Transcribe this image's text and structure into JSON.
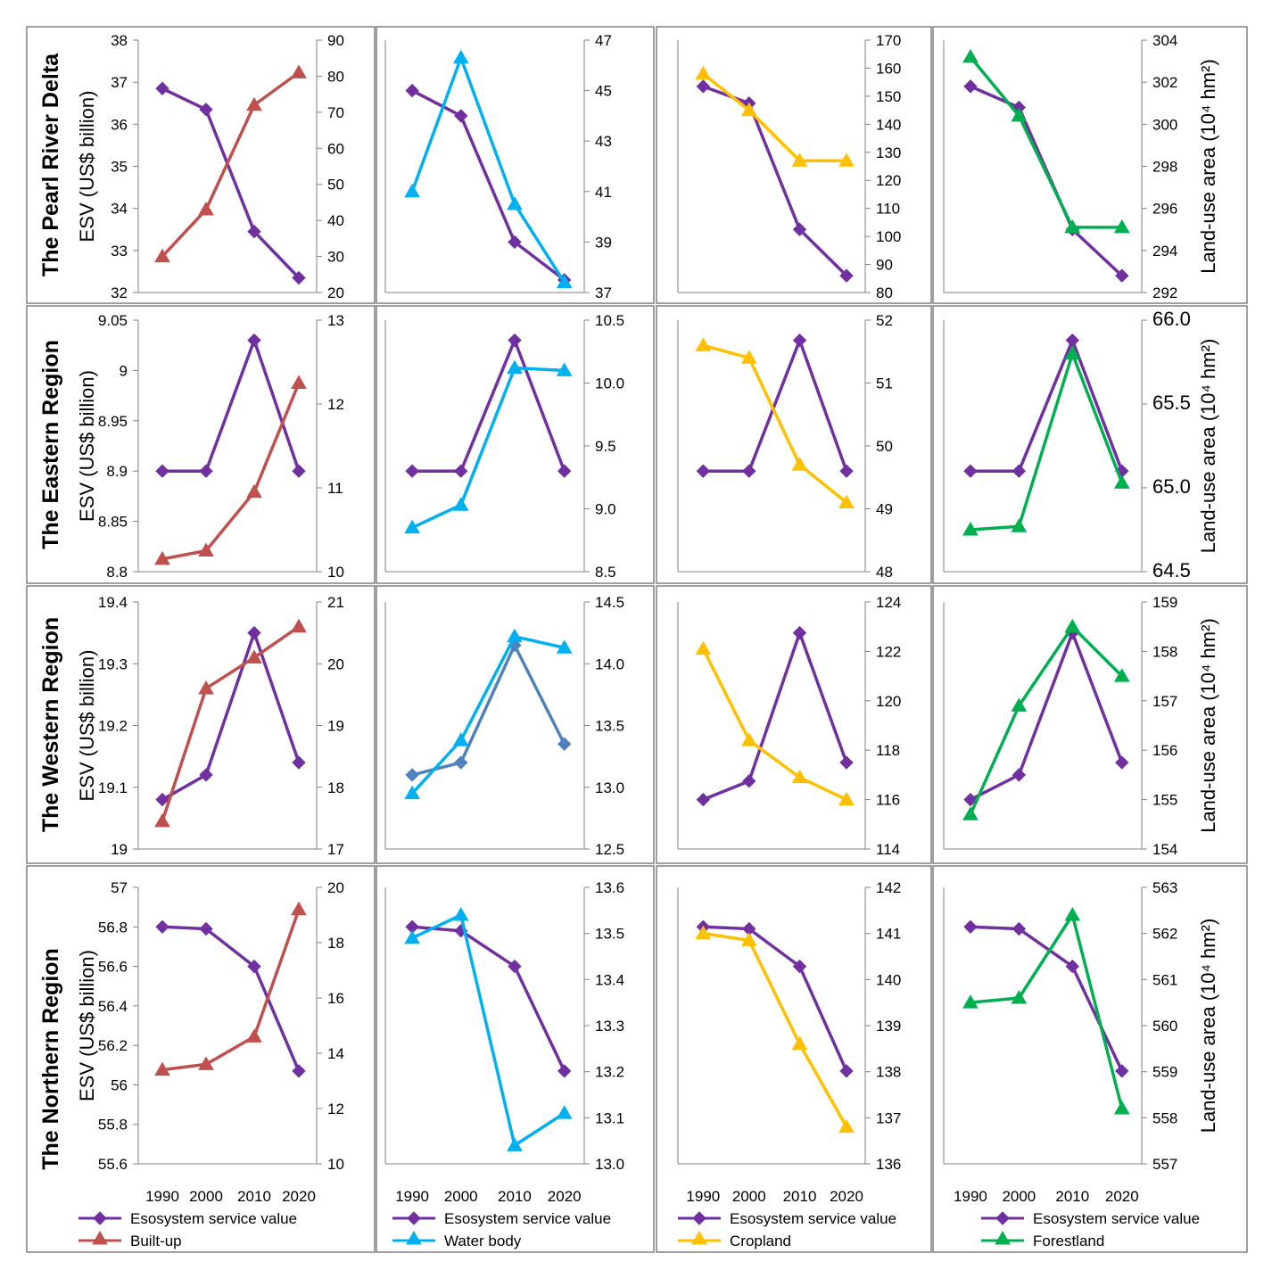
{
  "colors": {
    "esv": "#7030A0",
    "built": "#C0504D",
    "water": "#00B0F0",
    "water_esv_western": "#4F81BD",
    "crop": "#FFC000",
    "forest": "#00B050"
  },
  "row_titles": [
    "The Pearl River Delta",
    "The Eastern Region",
    "The Western Region",
    "The Northern Region"
  ],
  "y_label_left": "ESV (US$ billion)",
  "y_label_right": "Land-use area (10⁴ hm²)",
  "x_categories": [
    "1990",
    "2000",
    "2010",
    "2020"
  ],
  "legends": [
    {
      "esv": "Esosystem service value",
      "lu": "Built-up"
    },
    {
      "esv": "Esosystem service value",
      "lu": "Water body"
    },
    {
      "esv": "Esosystem service value",
      "lu": "Cropland"
    },
    {
      "esv": "Esosystem service value",
      "lu": "Forestland"
    }
  ],
  "chart_data": [
    {
      "type": "line",
      "region": "The Pearl River Delta",
      "land_use": "Built-up",
      "x": [
        "1990",
        "2000",
        "2010",
        "2020"
      ],
      "series": [
        {
          "name": "Esosystem service value",
          "axis": "left",
          "values": [
            36.85,
            36.35,
            33.45,
            32.35
          ]
        },
        {
          "name": "Built-up",
          "axis": "right",
          "values": [
            30,
            43,
            72,
            81
          ]
        }
      ],
      "ylim_left": [
        32,
        38
      ],
      "yticks_left": [
        "32",
        "33",
        "34",
        "35",
        "36",
        "37",
        "38"
      ],
      "ylim_right": [
        20,
        90
      ],
      "yticks_right": [
        "20",
        "30",
        "40",
        "50",
        "60",
        "70",
        "80",
        "90"
      ]
    },
    {
      "type": "line",
      "region": "The Pearl River Delta",
      "land_use": "Water body",
      "x": [
        "1990",
        "2000",
        "2010",
        "2020"
      ],
      "series": [
        {
          "name": "Esosystem service value",
          "axis": "left",
          "values": [
            38.4,
            37.6,
            33.6,
            32.4
          ]
        },
        {
          "name": "Water body",
          "axis": "right",
          "values": [
            41,
            46.3,
            40.5,
            37.4
          ]
        }
      ],
      "ylim_left": [
        32,
        40
      ],
      "ylim_right": [
        37,
        47
      ],
      "yticks_right": [
        "37",
        "39",
        "41",
        "43",
        "45",
        "47"
      ]
    },
    {
      "type": "line",
      "region": "The Pearl River Delta",
      "land_use": "Cropland",
      "x": [
        "1990",
        "2000",
        "2010",
        "2020"
      ],
      "series": [
        {
          "name": "Esosystem service value",
          "axis": "left",
          "values": [
            36.9,
            36.5,
            33.5,
            32.4
          ]
        },
        {
          "name": "Cropland",
          "axis": "right",
          "values": [
            158,
            145,
            127,
            127
          ]
        }
      ],
      "ylim_left": [
        32,
        38
      ],
      "ylim_right": [
        80,
        170
      ],
      "yticks_right": [
        "80",
        "90",
        "100",
        "110",
        "120",
        "130",
        "140",
        "150",
        "160",
        "170"
      ]
    },
    {
      "type": "line",
      "region": "The Pearl River Delta",
      "land_use": "Forestland",
      "x": [
        "1990",
        "2000",
        "2010",
        "2020"
      ],
      "series": [
        {
          "name": "Esosystem service value",
          "axis": "left",
          "values": [
            36.9,
            36.4,
            33.5,
            32.4
          ]
        },
        {
          "name": "Forestland",
          "axis": "right",
          "values": [
            303.2,
            300.4,
            295.1,
            295.1
          ]
        }
      ],
      "ylim_left": [
        32,
        38
      ],
      "ylim_right": [
        292,
        304
      ],
      "yticks_right": [
        "292",
        "294",
        "296",
        "298",
        "300",
        "302",
        "304"
      ]
    },
    {
      "type": "line",
      "region": "The Eastern Region",
      "land_use": "Built-up",
      "x": [
        "1990",
        "2000",
        "2010",
        "2020"
      ],
      "series": [
        {
          "name": "Esosystem service value",
          "axis": "left",
          "values": [
            8.9,
            8.9,
            9.03,
            8.9
          ]
        },
        {
          "name": "Built-up",
          "axis": "right",
          "values": [
            10.15,
            10.25,
            10.95,
            12.25
          ]
        }
      ],
      "ylim_left": [
        8.8,
        9.05
      ],
      "yticks_left": [
        "8.8",
        "8.85",
        "8.9",
        "8.95",
        "9",
        "9.05"
      ],
      "ylim_right": [
        10,
        13
      ],
      "yticks_right": [
        "10",
        "11",
        "12",
        "13"
      ]
    },
    {
      "type": "line",
      "region": "The Eastern Region",
      "land_use": "Water body",
      "x": [
        "1990",
        "2000",
        "2010",
        "2020"
      ],
      "series": [
        {
          "name": "Esosystem service value",
          "axis": "left",
          "values": [
            8.9,
            8.9,
            9.03,
            8.9
          ]
        },
        {
          "name": "Water body",
          "axis": "right",
          "values": [
            8.85,
            9.03,
            10.12,
            10.1
          ]
        }
      ],
      "ylim_left": [
        8.8,
        9.05
      ],
      "ylim_right": [
        8.5,
        10.5
      ],
      "yticks_right": [
        "8.5",
        "9.0",
        "9.5",
        "10.0",
        "10.5"
      ]
    },
    {
      "type": "line",
      "region": "The Eastern Region",
      "land_use": "Cropland",
      "x": [
        "1990",
        "2000",
        "2010",
        "2020"
      ],
      "series": [
        {
          "name": "Esosystem service value",
          "axis": "left",
          "values": [
            8.9,
            8.9,
            9.03,
            8.9
          ]
        },
        {
          "name": "Cropland",
          "axis": "right",
          "values": [
            51.6,
            51.4,
            49.7,
            49.1
          ]
        }
      ],
      "ylim_left": [
        8.8,
        9.05
      ],
      "ylim_right": [
        48,
        52
      ],
      "yticks_right": [
        "48",
        "49",
        "50",
        "51",
        "52"
      ]
    },
    {
      "type": "line",
      "region": "The Eastern Region",
      "land_use": "Forestland",
      "x": [
        "1990",
        "2000",
        "2010",
        "2020"
      ],
      "series": [
        {
          "name": "Esosystem service value",
          "axis": "left",
          "values": [
            8.9,
            8.9,
            9.03,
            8.9
          ]
        },
        {
          "name": "Forestland",
          "axis": "right",
          "values": [
            64.75,
            64.77,
            65.8,
            65.03
          ]
        }
      ],
      "ylim_left": [
        8.8,
        9.05
      ],
      "ylim_right": [
        64.5,
        66.0
      ],
      "yticks_right": [
        "64.5",
        "65.0",
        "65.5",
        "66.0"
      ]
    },
    {
      "type": "line",
      "region": "The Western Region",
      "land_use": "Built-up",
      "x": [
        "1990",
        "2000",
        "2010",
        "2020"
      ],
      "series": [
        {
          "name": "Esosystem service value",
          "axis": "left",
          "values": [
            19.08,
            19.12,
            19.35,
            19.14
          ]
        },
        {
          "name": "Built-up",
          "axis": "right",
          "values": [
            17.45,
            19.6,
            20.1,
            20.6
          ]
        }
      ],
      "ylim_left": [
        19,
        19.4
      ],
      "yticks_left": [
        "19",
        "19.1",
        "19.2",
        "19.3",
        "19.4"
      ],
      "ylim_right": [
        17,
        21
      ],
      "yticks_right": [
        "17",
        "18",
        "19",
        "20",
        "21"
      ]
    },
    {
      "type": "line",
      "region": "The Western Region",
      "land_use": "Water body",
      "x": [
        "1990",
        "2000",
        "2010",
        "2020"
      ],
      "series": [
        {
          "name": "Esosystem service value",
          "axis": "left",
          "values": [
            19.12,
            19.14,
            19.33,
            19.17
          ]
        },
        {
          "name": "Water body",
          "axis": "right",
          "values": [
            12.95,
            13.38,
            14.22,
            14.13
          ]
        }
      ],
      "ylim_left": [
        19,
        19.4
      ],
      "ylim_right": [
        12.5,
        14.5
      ],
      "yticks_right": [
        "12.5",
        "13.0",
        "13.5",
        "14.0",
        "14.5"
      ]
    },
    {
      "type": "line",
      "region": "The Western Region",
      "land_use": "Cropland",
      "x": [
        "1990",
        "2000",
        "2010",
        "2020"
      ],
      "series": [
        {
          "name": "Esosystem service value",
          "axis": "left",
          "values": [
            19.08,
            19.11,
            19.35,
            19.14
          ]
        },
        {
          "name": "Cropland",
          "axis": "right",
          "values": [
            122.1,
            118.4,
            116.9,
            116
          ]
        }
      ],
      "ylim_left": [
        19,
        19.4
      ],
      "ylim_right": [
        114,
        124
      ],
      "yticks_right": [
        "114",
        "116",
        "118",
        "120",
        "122",
        "124"
      ]
    },
    {
      "type": "line",
      "region": "The Western Region",
      "land_use": "Forestland",
      "x": [
        "1990",
        "2000",
        "2010",
        "2020"
      ],
      "series": [
        {
          "name": "Esosystem service value",
          "axis": "left",
          "values": [
            19.08,
            19.12,
            19.35,
            19.14
          ]
        },
        {
          "name": "Forestland",
          "axis": "right",
          "values": [
            154.7,
            156.9,
            158.5,
            157.5
          ]
        }
      ],
      "ylim_left": [
        19,
        19.4
      ],
      "ylim_right": [
        154,
        159
      ],
      "yticks_right": [
        "154",
        "155",
        "156",
        "157",
        "158",
        "159"
      ]
    },
    {
      "type": "line",
      "region": "The Northern Region",
      "land_use": "Built-up",
      "x": [
        "1990",
        "2000",
        "2010",
        "2020"
      ],
      "series": [
        {
          "name": "Esosystem service value",
          "axis": "left",
          "values": [
            56.8,
            56.79,
            56.6,
            56.07
          ]
        },
        {
          "name": "Built-up",
          "axis": "right",
          "values": [
            13.4,
            13.6,
            14.6,
            19.2
          ]
        }
      ],
      "ylim_left": [
        55.6,
        57
      ],
      "yticks_left": [
        "55.6",
        "55.8",
        "56",
        "56.2",
        "56.4",
        "56.6",
        "56.8",
        "57"
      ],
      "ylim_right": [
        10,
        20
      ],
      "yticks_right": [
        "10",
        "12",
        "14",
        "16",
        "18",
        "20"
      ]
    },
    {
      "type": "line",
      "region": "The Northern Region",
      "land_use": "Water body",
      "x": [
        "1990",
        "2000",
        "2010",
        "2020"
      ],
      "series": [
        {
          "name": "Esosystem service value",
          "axis": "left",
          "values": [
            56.8,
            56.78,
            56.6,
            56.07
          ]
        },
        {
          "name": "Water body",
          "axis": "right",
          "values": [
            13.49,
            13.54,
            13.04,
            13.11
          ]
        }
      ],
      "ylim_left": [
        55.6,
        57
      ],
      "ylim_right": [
        13.0,
        13.6
      ],
      "yticks_right": [
        "13.0",
        "13.1",
        "13.2",
        "13.3",
        "13.4",
        "13.5",
        "13.6"
      ]
    },
    {
      "type": "line",
      "region": "The Northern Region",
      "land_use": "Cropland",
      "x": [
        "1990",
        "2000",
        "2010",
        "2020"
      ],
      "series": [
        {
          "name": "Esosystem service value",
          "axis": "left",
          "values": [
            56.8,
            56.79,
            56.6,
            56.07
          ]
        },
        {
          "name": "Cropland",
          "axis": "right",
          "values": [
            141,
            140.85,
            138.6,
            136.8
          ]
        }
      ],
      "ylim_left": [
        55.6,
        57
      ],
      "ylim_right": [
        136,
        142
      ],
      "yticks_right": [
        "136",
        "137",
        "138",
        "139",
        "140",
        "141",
        "142"
      ]
    },
    {
      "type": "line",
      "region": "The Northern Region",
      "land_use": "Forestland",
      "x": [
        "1990",
        "2000",
        "2010",
        "2020"
      ],
      "series": [
        {
          "name": "Esosystem service value",
          "axis": "left",
          "values": [
            56.8,
            56.79,
            56.6,
            56.07
          ]
        },
        {
          "name": "Forestland",
          "axis": "right",
          "values": [
            560.5,
            560.6,
            562.4,
            558.2
          ]
        }
      ],
      "ylim_left": [
        55.6,
        57
      ],
      "ylim_right": [
        557,
        563
      ],
      "yticks_right": [
        "557",
        "558",
        "559",
        "560",
        "561",
        "562",
        "563"
      ]
    }
  ]
}
